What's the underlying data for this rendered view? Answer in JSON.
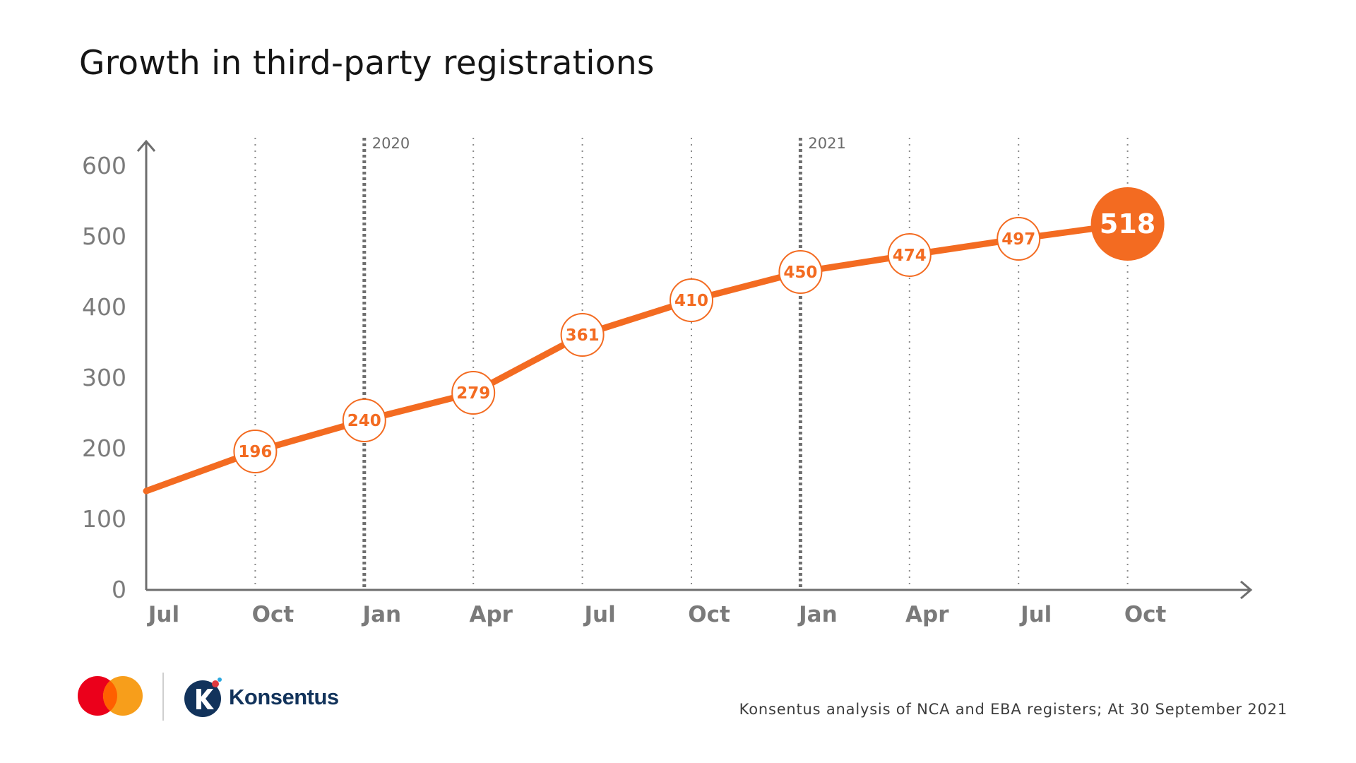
{
  "title": "Growth in third-party registrations",
  "chart_data": {
    "type": "line",
    "title": "Growth in third-party registrations",
    "xlabel": "",
    "ylabel": "",
    "categories": [
      "Jul",
      "Oct",
      "Jan",
      "Apr",
      "Jul",
      "Oct",
      "Jan",
      "Apr",
      "Jul",
      "Oct"
    ],
    "period_dates": [
      "2019-07-01",
      "2019-10-01",
      "2020-01-01",
      "2020-04-01",
      "2020-07-01",
      "2020-10-01",
      "2021-01-01",
      "2021-04-01",
      "2021-07-01",
      "2021-10-01"
    ],
    "series": [
      {
        "points": [
          {
            "x": "2019-07-01",
            "y": 140,
            "label": ""
          },
          {
            "x": "2019-10-01",
            "y": 196,
            "label": "196"
          },
          {
            "x": "2020-01-01",
            "y": 240,
            "label": "240"
          },
          {
            "x": "2020-04-01",
            "y": 279,
            "label": "279"
          },
          {
            "x": "2020-07-01",
            "y": 361,
            "label": "361"
          },
          {
            "x": "2020-10-01",
            "y": 410,
            "label": "410"
          },
          {
            "x": "2021-01-01",
            "y": 450,
            "label": "450"
          },
          {
            "x": "2021-04-01",
            "y": 474,
            "label": "474"
          },
          {
            "x": "2021-07-01",
            "y": 497,
            "label": "497"
          },
          {
            "x": "2021-10-01",
            "y": 518,
            "label": "518"
          }
        ]
      }
    ],
    "yticks": [
      0,
      100,
      200,
      300,
      400,
      500,
      600
    ],
    "ylim": [
      0,
      600
    ],
    "year_markers": [
      {
        "x": "2020-01-01",
        "label": "2020"
      },
      {
        "x": "2021-01-01",
        "label": "2021"
      }
    ],
    "highlight_last_point": true,
    "grid": "vertical dotted lines at each quarter",
    "legend": "none",
    "colors": {
      "line": "#f36b21",
      "axis": "#6e6e6e",
      "grid": "#8a8a8a",
      "tick_label": "#7b7b7b"
    }
  },
  "footer": {
    "source": "Konsentus analysis of NCA and EBA registers; At 30 September 2021",
    "brand_name": "Konsentus",
    "logos": [
      "mastercard-logo",
      "konsentus-logo"
    ],
    "colors": {
      "mc_red": "#eb001b",
      "mc_yellow": "#f79e1b",
      "mc_overlap": "#ff5f00",
      "konsentus_navy": "#12335b"
    }
  }
}
